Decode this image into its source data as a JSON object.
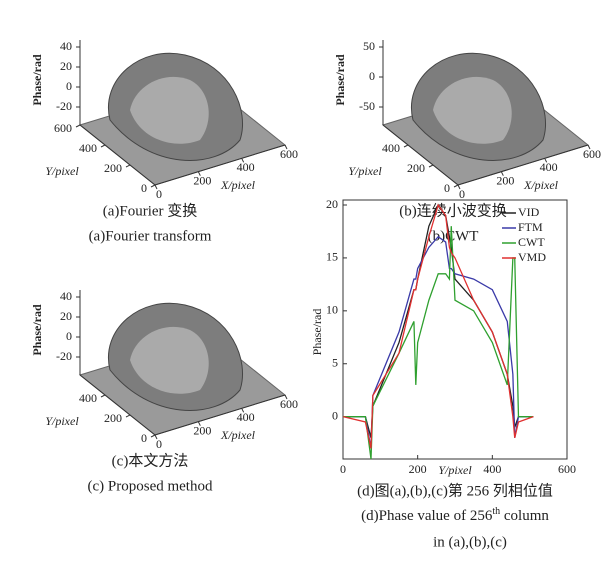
{
  "surface_plots": [
    {
      "zlabel": "Phase/rad",
      "ylabel": "Y/pixel",
      "xlabel": "X/pixel",
      "zticks": [
        40,
        20,
        0,
        -20
      ],
      "yticks": [
        600,
        400,
        200,
        0
      ],
      "xticks": [
        0,
        200,
        400,
        600
      ],
      "caption_cn": "(a)Fourier 变换",
      "caption_en": "(a)Fourier transform"
    },
    {
      "zlabel": "Phase/rad",
      "ylabel": "Y/pixel",
      "xlabel": "X/pixel",
      "zticks": [
        50,
        0,
        -50
      ],
      "yticks": [
        400,
        200,
        0
      ],
      "xticks": [
        0,
        200,
        400,
        600
      ],
      "caption_cn": "(b)连续小波变换",
      "caption_en": "(b)CWT"
    },
    {
      "zlabel": "Phase/rad",
      "ylabel": "Y/pixel",
      "xlabel": "X/pixel",
      "zticks": [
        40,
        20,
        0,
        -20
      ],
      "yticks": [
        400,
        200,
        0
      ],
      "xticks": [
        0,
        200,
        400,
        600
      ],
      "caption_cn": "(c)本文方法",
      "caption_en": "(c) Proposed method"
    }
  ],
  "chart_data": {
    "type": "line",
    "ylabel": "Phase/rad",
    "xlabel": "Y/pixel",
    "x": [
      0,
      60,
      75,
      80,
      150,
      190,
      195,
      200,
      230,
      255,
      275,
      285,
      290,
      300,
      350,
      400,
      440,
      455,
      460,
      470,
      510
    ],
    "series": [
      {
        "name": "VID",
        "color": "#222222",
        "values": [
          0,
          0,
          -2,
          1,
          7,
          12,
          12,
          13,
          18,
          20,
          19,
          17,
          16,
          13,
          11,
          8,
          4,
          1,
          -1,
          0,
          0
        ]
      },
      {
        "name": "FTM",
        "color": "#3a3aa8",
        "values": [
          0,
          0,
          -3,
          2,
          8,
          13,
          13,
          14,
          16,
          17,
          16.5,
          14,
          14,
          13.5,
          13,
          12,
          9,
          4,
          -2,
          0,
          0
        ]
      },
      {
        "name": "CWT",
        "color": "#2fa02f",
        "values": [
          0,
          0,
          -4,
          1,
          6,
          9,
          3,
          7,
          11,
          13.5,
          13.5,
          13,
          18,
          11,
          10,
          7,
          3,
          15,
          15,
          0,
          0
        ]
      },
      {
        "name": "VMD",
        "color": "#e03030",
        "values": [
          0,
          -0.5,
          -3,
          2,
          6,
          12,
          12,
          13,
          17,
          20,
          19,
          16,
          15.5,
          15,
          11,
          8,
          4,
          0,
          -2,
          -0.5,
          0
        ]
      }
    ],
    "xlim": [
      0,
      600
    ],
    "xticks": [
      0,
      200,
      400,
      600
    ],
    "ylim": [
      -4,
      20
    ],
    "yticks": [
      0,
      5,
      10,
      15,
      20
    ],
    "caption_cn": "(d)图(a),(b),(c)第 256 列相位值",
    "caption_en": {
      "before": "(d)Phase value of 256",
      "sup": "th",
      "after": " column"
    },
    "caption_en2": "in (a),(b),(c)"
  }
}
